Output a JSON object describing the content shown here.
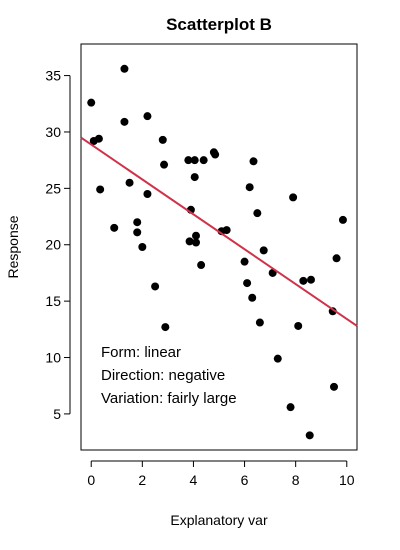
{
  "chart_data": {
    "type": "scatter",
    "title": "Scatterplot B",
    "xlabel": "Explanatory var",
    "ylabel": "Response",
    "xlim": [
      -0.4,
      10.4
    ],
    "ylim": [
      1.8,
      37.8
    ],
    "x_ticks": [
      0,
      2,
      4,
      6,
      8,
      10
    ],
    "y_ticks": [
      5,
      10,
      15,
      20,
      25,
      30,
      35
    ],
    "grid": false,
    "legend": "none",
    "point_color": "#000000",
    "line_color": "#d0324a",
    "regression_line": {
      "x": [
        -0.4,
        10.4
      ],
      "y": [
        29.5,
        12.8
      ]
    },
    "annotations": [
      "Form: linear",
      "Direction: negative",
      "Variation: fairly large"
    ],
    "points": [
      {
        "x": 0.0,
        "y": 32.6
      },
      {
        "x": 0.1,
        "y": 29.2
      },
      {
        "x": 0.3,
        "y": 29.4
      },
      {
        "x": 0.35,
        "y": 24.9
      },
      {
        "x": 0.9,
        "y": 21.5
      },
      {
        "x": 1.3,
        "y": 35.6
      },
      {
        "x": 1.3,
        "y": 30.9
      },
      {
        "x": 1.5,
        "y": 25.5
      },
      {
        "x": 1.8,
        "y": 22.0
      },
      {
        "x": 1.8,
        "y": 21.1
      },
      {
        "x": 2.0,
        "y": 19.8
      },
      {
        "x": 2.2,
        "y": 24.5
      },
      {
        "x": 2.2,
        "y": 31.4
      },
      {
        "x": 2.5,
        "y": 16.3
      },
      {
        "x": 2.8,
        "y": 29.3
      },
      {
        "x": 2.85,
        "y": 27.1
      },
      {
        "x": 2.9,
        "y": 12.7
      },
      {
        "x": 3.8,
        "y": 27.5
      },
      {
        "x": 3.85,
        "y": 20.3
      },
      {
        "x": 3.9,
        "y": 23.1
      },
      {
        "x": 4.05,
        "y": 27.5
      },
      {
        "x": 4.05,
        "y": 26.0
      },
      {
        "x": 4.1,
        "y": 20.8
      },
      {
        "x": 4.1,
        "y": 20.2
      },
      {
        "x": 4.3,
        "y": 18.2
      },
      {
        "x": 4.4,
        "y": 27.5
      },
      {
        "x": 4.8,
        "y": 28.2
      },
      {
        "x": 4.85,
        "y": 28.0
      },
      {
        "x": 5.1,
        "y": 21.2
      },
      {
        "x": 5.3,
        "y": 21.3
      },
      {
        "x": 6.0,
        "y": 18.5
      },
      {
        "x": 6.1,
        "y": 16.6
      },
      {
        "x": 6.2,
        "y": 25.1
      },
      {
        "x": 6.3,
        "y": 15.3
      },
      {
        "x": 6.35,
        "y": 27.4
      },
      {
        "x": 6.5,
        "y": 22.8
      },
      {
        "x": 6.6,
        "y": 13.1
      },
      {
        "x": 6.75,
        "y": 19.5
      },
      {
        "x": 7.1,
        "y": 17.5
      },
      {
        "x": 7.3,
        "y": 9.9
      },
      {
        "x": 7.8,
        "y": 5.6
      },
      {
        "x": 7.9,
        "y": 24.2
      },
      {
        "x": 8.1,
        "y": 12.8
      },
      {
        "x": 8.3,
        "y": 16.8
      },
      {
        "x": 8.6,
        "y": 16.9
      },
      {
        "x": 8.55,
        "y": 3.1
      },
      {
        "x": 9.45,
        "y": 14.1
      },
      {
        "x": 9.5,
        "y": 7.4
      },
      {
        "x": 9.6,
        "y": 18.8
      },
      {
        "x": 9.85,
        "y": 22.2
      }
    ]
  }
}
